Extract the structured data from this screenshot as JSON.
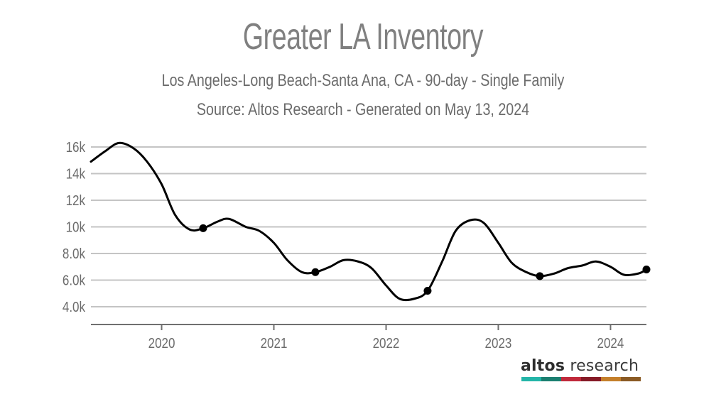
{
  "chart_data": {
    "type": "line",
    "title": "Greater LA Inventory",
    "subtitle": "Los Angeles-Long Beach-Santa Ana, CA - 90-day - Single Family",
    "source": "Source: Altos Research - Generated on May 13, 2024",
    "xlabel": "",
    "ylabel": "",
    "xlim": [
      2019.37,
      2024.32
    ],
    "ylim": [
      2700,
      16500
    ],
    "grid": true,
    "legend": "none",
    "x_ticks": [
      {
        "value": 2020,
        "label": "2020"
      },
      {
        "value": 2021,
        "label": "2021"
      },
      {
        "value": 2022,
        "label": "2022"
      },
      {
        "value": 2023,
        "label": "2023"
      },
      {
        "value": 2024,
        "label": "2024"
      }
    ],
    "y_ticks": [
      {
        "value": 4000,
        "label": "4.0k"
      },
      {
        "value": 6000,
        "label": "6.0k"
      },
      {
        "value": 8000,
        "label": "8.0k"
      },
      {
        "value": 10000,
        "label": "10k"
      },
      {
        "value": 12000,
        "label": "12k"
      },
      {
        "value": 14000,
        "label": "14k"
      },
      {
        "value": 16000,
        "label": "16k"
      }
    ],
    "series": [
      {
        "name": "Inventory",
        "color": "#000000",
        "x": [
          2019.37,
          2019.5,
          2019.62,
          2019.75,
          2019.87,
          2020.0,
          2020.12,
          2020.25,
          2020.37,
          2020.5,
          2020.6,
          2020.75,
          2020.87,
          2021.0,
          2021.12,
          2021.25,
          2021.37,
          2021.5,
          2021.62,
          2021.75,
          2021.87,
          2022.0,
          2022.12,
          2022.25,
          2022.37,
          2022.5,
          2022.62,
          2022.75,
          2022.87,
          2023.0,
          2023.12,
          2023.25,
          2023.37,
          2023.5,
          2023.62,
          2023.75,
          2023.87,
          2024.0,
          2024.12,
          2024.25,
          2024.32
        ],
        "values": [
          14900,
          15700,
          16300,
          15900,
          14900,
          13200,
          10900,
          9800,
          9900,
          10400,
          10600,
          10000,
          9700,
          8800,
          7500,
          6600,
          6600,
          7000,
          7500,
          7400,
          6900,
          5600,
          4600,
          4600,
          5200,
          7400,
          9700,
          10500,
          10300,
          8800,
          7300,
          6600,
          6300,
          6500,
          6900,
          7100,
          7400,
          7000,
          6400,
          6500,
          6800
        ]
      }
    ],
    "markers": [
      {
        "x": 2020.37,
        "value": 9900
      },
      {
        "x": 2021.37,
        "value": 6600
      },
      {
        "x": 2022.37,
        "value": 5200
      },
      {
        "x": 2023.37,
        "value": 6300
      },
      {
        "x": 2024.32,
        "value": 6800
      }
    ]
  },
  "branding": {
    "logo_bold": "altos",
    "logo_light": "research",
    "logo_colors": [
      "#23b5a8",
      "#1b7f70",
      "#c0283a",
      "#851a26",
      "#c47f2a",
      "#8a5a24"
    ]
  }
}
